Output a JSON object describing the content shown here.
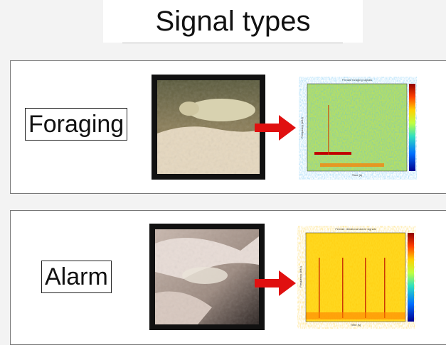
{
  "header": {
    "title": "Signal types"
  },
  "panels": [
    {
      "label": "Foraging",
      "spectrogram": {
        "title": "Female foraging signals",
        "x_label": "Time (s)",
        "y_label": "Frequency (kHz)"
      }
    },
    {
      "label": "Alarm",
      "spectrogram": {
        "title": "Female vibrational alarm signals",
        "x_label": "Time (s)",
        "y_label": "Frequency (kHz)"
      }
    }
  ]
}
